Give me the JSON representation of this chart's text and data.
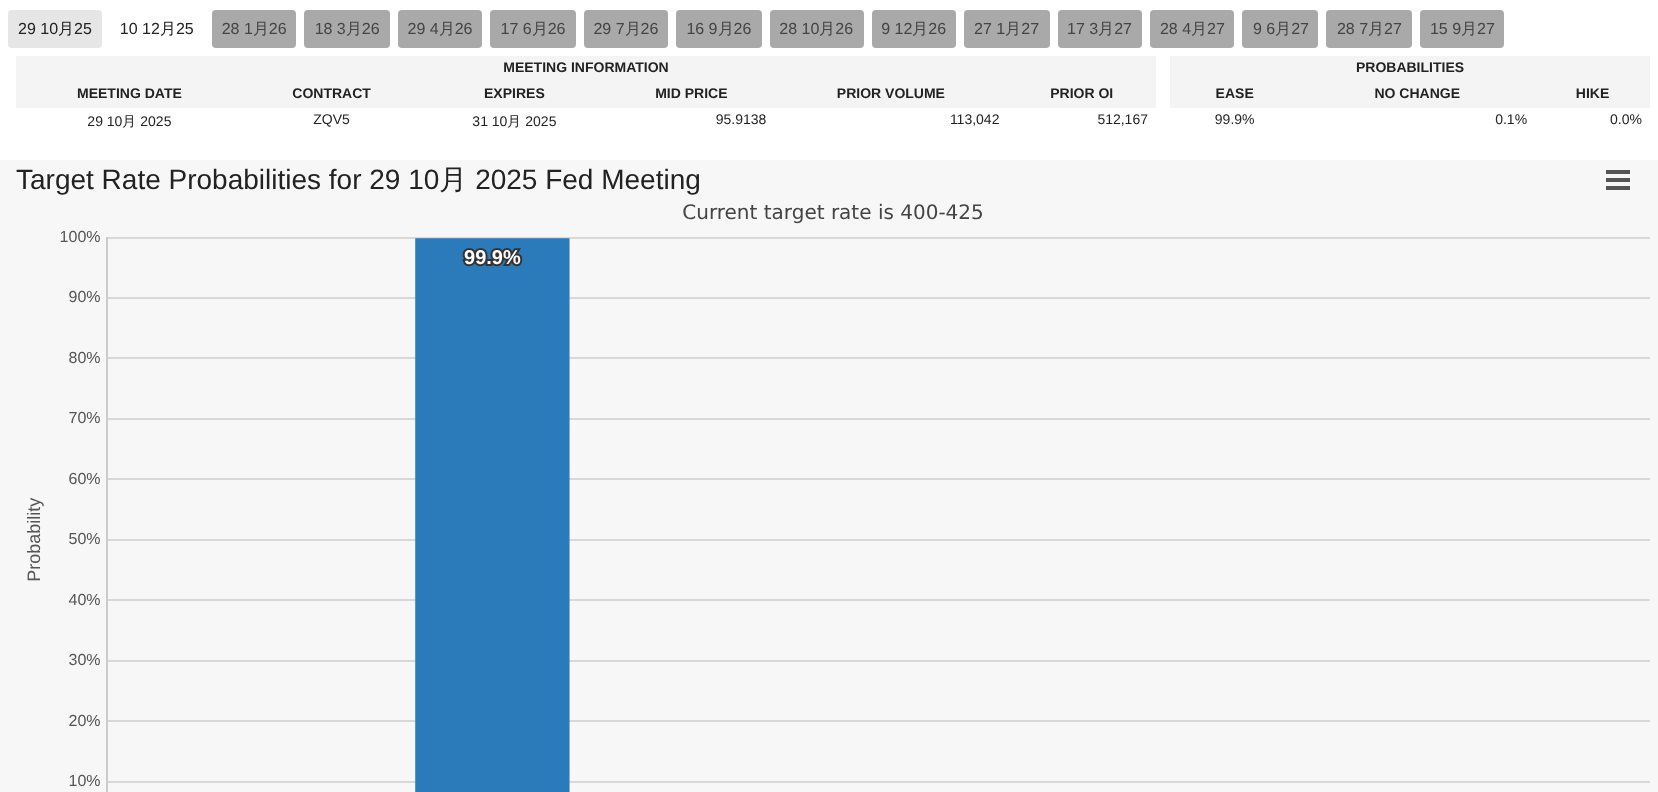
{
  "chart_data": {
    "type": "bar",
    "title": "Target Rate Probabilities for 29 10月 2025 Fed Meeting",
    "subtitle": "Current target rate is 400-425",
    "ylabel": "Probability",
    "categories": [
      null,
      null
    ],
    "series": [
      {
        "color": "#2b7bba",
        "values": [
          99.9,
          null
        ],
        "value_labels": [
          "99.9%",
          null
        ]
      }
    ],
    "ylim": [
      0,
      100
    ],
    "yticks": [
      {
        "value": 10,
        "label": "10%"
      },
      {
        "value": 20,
        "label": "20%"
      },
      {
        "value": 30,
        "label": "30%"
      },
      {
        "value": 40,
        "label": "40%"
      },
      {
        "value": 50,
        "label": "50%"
      },
      {
        "value": 60,
        "label": "60%"
      },
      {
        "value": 70,
        "label": "70%"
      },
      {
        "value": 80,
        "label": "80%"
      },
      {
        "value": 90,
        "label": "90%"
      },
      {
        "value": 100,
        "label": "100%"
      }
    ],
    "grid": "y",
    "legend": false,
    "tick_labels": "y",
    "annotations": [
      "29 10月25",
      "10 12月25",
      "28 1月26",
      "18 3月26",
      "29 4月26",
      "17 6月26",
      "29 7月26",
      "16 9月26",
      "28 10月26",
      "9 12月26",
      "27 1月27",
      "17 3月27",
      "28 4月27",
      "9 6月27",
      "28 7月27",
      "15 9月27",
      "MEETING INFORMATION",
      "MEETING DATE",
      "CONTRACT",
      "EXPIRES",
      "MID PRICE",
      "PRIOR VOLUME",
      "PRIOR OI",
      "29 10月 2025",
      "ZQV5",
      "31 10月 2025",
      "95.9138",
      "113,042",
      "512,167",
      "PROBABILITIES",
      "EASE",
      "NO CHANGE",
      "HIKE",
      "99.9%",
      "0.1%",
      "0.0%"
    ]
  }
}
